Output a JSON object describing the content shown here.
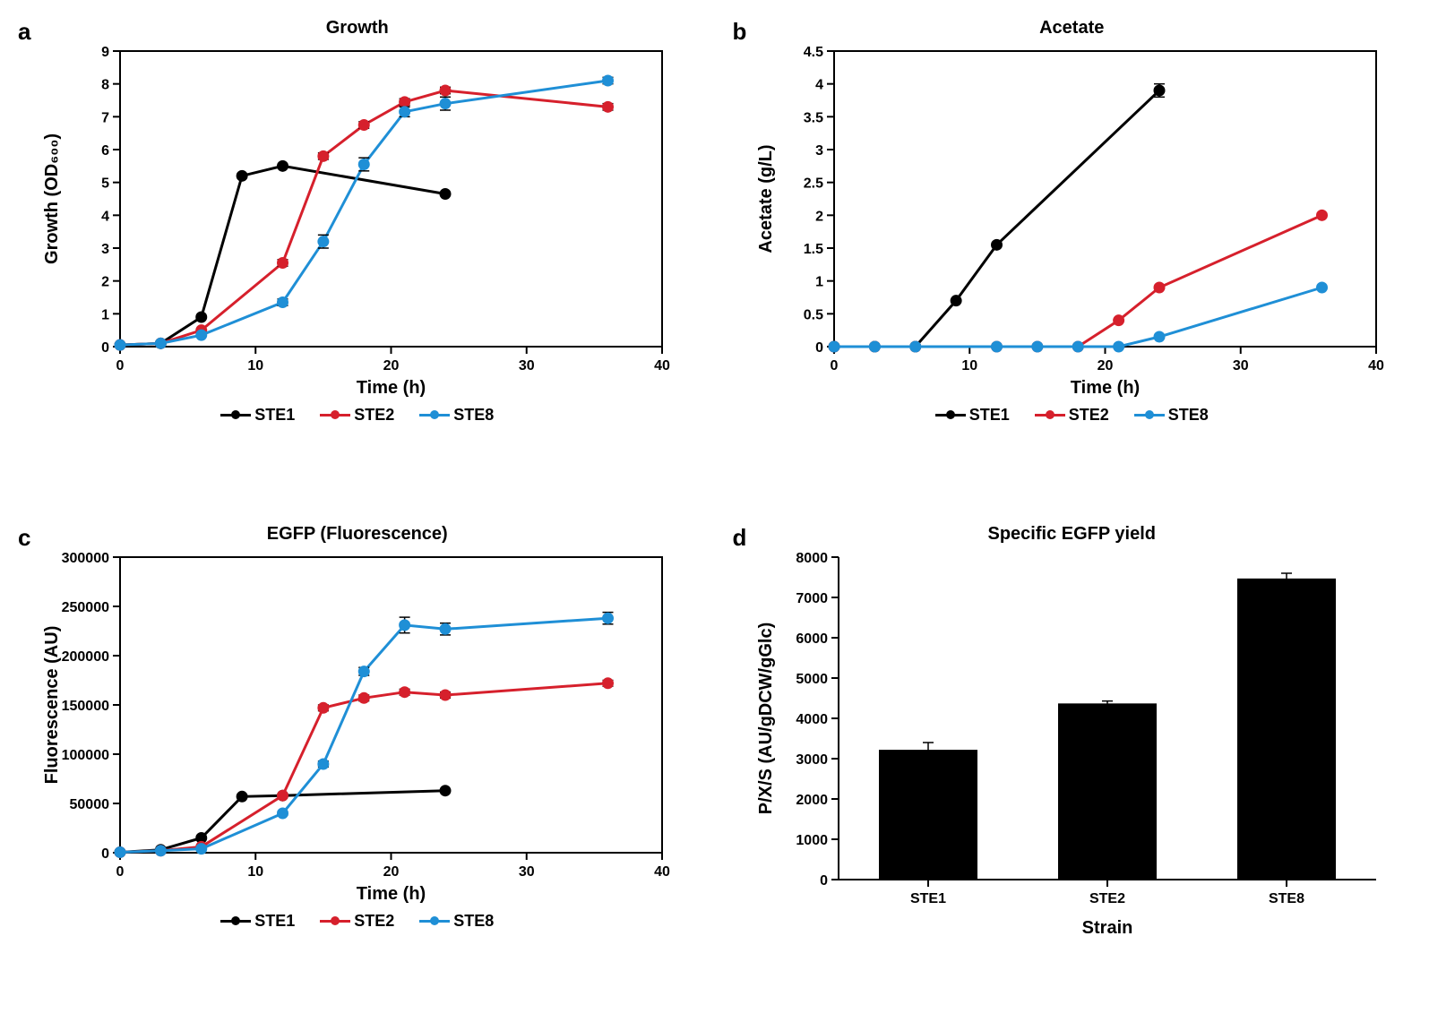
{
  "colors": {
    "ste1": "#000000",
    "ste2": "#d6202c",
    "ste8": "#1f8fd6",
    "axis": "#000000",
    "tick": "#000000",
    "bar_fill": "#000000",
    "background": "#ffffff",
    "text": "#000000"
  },
  "style": {
    "line_width": 3,
    "marker_radius": 6,
    "axis_width": 2,
    "tick_len": 8,
    "font_family": "Arial",
    "title_fontsize_pt": 20,
    "axis_label_fontsize_pt": 20,
    "tick_label_fontsize_pt": 16,
    "panel_label_fontsize_pt": 26,
    "legend_fontsize_pt": 18,
    "errorbar_cap": 6
  },
  "panel_a": {
    "letter": "a",
    "type": "line",
    "title": "Growth",
    "xlabel": "Time (h)",
    "ylabel": "Growth (OD₆₀₀)",
    "xlim": [
      0,
      40
    ],
    "xtick_step": 10,
    "ylim": [
      0,
      9
    ],
    "ytick_step": 1,
    "series": [
      {
        "name": "STE1",
        "color_key": "ste1",
        "x": [
          0,
          3,
          6,
          9,
          12,
          24
        ],
        "y": [
          0.05,
          0.1,
          0.9,
          5.2,
          5.5,
          4.65
        ],
        "err": [
          0,
          0,
          0,
          0,
          0,
          0
        ]
      },
      {
        "name": "STE2",
        "color_key": "ste2",
        "x": [
          0,
          3,
          6,
          12,
          15,
          18,
          21,
          24,
          36
        ],
        "y": [
          0.05,
          0.1,
          0.5,
          2.55,
          5.8,
          6.75,
          7.45,
          7.8,
          7.3
        ],
        "err": [
          0,
          0,
          0,
          0.1,
          0.1,
          0.1,
          0.1,
          0.1,
          0.1
        ]
      },
      {
        "name": "STE8",
        "color_key": "ste8",
        "x": [
          0,
          3,
          6,
          12,
          15,
          18,
          21,
          24,
          36
        ],
        "y": [
          0.05,
          0.1,
          0.35,
          1.35,
          3.2,
          5.55,
          7.15,
          7.4,
          8.1
        ],
        "err": [
          0,
          0,
          0,
          0.1,
          0.2,
          0.2,
          0.15,
          0.2,
          0.1
        ]
      }
    ]
  },
  "panel_b": {
    "letter": "b",
    "type": "line",
    "title": "Acetate",
    "xlabel": "Time (h)",
    "ylabel": "Acetate (g/L)",
    "xlim": [
      0,
      40
    ],
    "xtick_step": 10,
    "ylim": [
      0,
      4.5
    ],
    "ytick_step": 0.5,
    "series": [
      {
        "name": "STE1",
        "color_key": "ste1",
        "x": [
          0,
          3,
          6,
          9,
          12,
          24
        ],
        "y": [
          0,
          0,
          0,
          0.7,
          1.55,
          3.9
        ],
        "err": [
          0,
          0,
          0,
          0,
          0,
          0.1
        ]
      },
      {
        "name": "STE2",
        "color_key": "ste2",
        "x": [
          0,
          3,
          6,
          12,
          15,
          18,
          21,
          24,
          36
        ],
        "y": [
          0,
          0,
          0,
          0,
          0,
          0,
          0.4,
          0.9,
          2.0
        ],
        "err": [
          0,
          0,
          0,
          0,
          0,
          0,
          0,
          0,
          0
        ]
      },
      {
        "name": "STE8",
        "color_key": "ste8",
        "x": [
          0,
          3,
          6,
          12,
          15,
          18,
          21,
          24,
          36
        ],
        "y": [
          0,
          0,
          0,
          0,
          0,
          0,
          0,
          0.15,
          0.9
        ],
        "err": [
          0,
          0,
          0,
          0,
          0,
          0,
          0,
          0,
          0
        ]
      }
    ]
  },
  "panel_c": {
    "letter": "c",
    "type": "line",
    "title": "EGFP (Fluorescence)",
    "xlabel": "Time (h)",
    "ylabel": "Fluorescence (AU)",
    "xlim": [
      0,
      40
    ],
    "xtick_step": 10,
    "ylim": [
      0,
      300000
    ],
    "ytick_step": 50000,
    "series": [
      {
        "name": "STE1",
        "color_key": "ste1",
        "x": [
          0,
          3,
          6,
          9,
          12,
          24
        ],
        "y": [
          500,
          3000,
          15000,
          57000,
          58000,
          63000
        ],
        "err": [
          0,
          0,
          0,
          0,
          0,
          0
        ]
      },
      {
        "name": "STE2",
        "color_key": "ste2",
        "x": [
          0,
          3,
          6,
          12,
          15,
          18,
          21,
          24,
          36
        ],
        "y": [
          500,
          2000,
          6000,
          58000,
          147000,
          157000,
          163000,
          160000,
          172000
        ],
        "err": [
          0,
          0,
          0,
          2000,
          3000,
          3000,
          3000,
          3000,
          3000
        ]
      },
      {
        "name": "STE8",
        "color_key": "ste8",
        "x": [
          0,
          3,
          6,
          12,
          15,
          18,
          21,
          24,
          36
        ],
        "y": [
          500,
          2000,
          4000,
          40000,
          90000,
          184000,
          231000,
          227000,
          238000
        ],
        "err": [
          0,
          0,
          0,
          2000,
          3000,
          4000,
          8000,
          6000,
          6000
        ]
      }
    ]
  },
  "panel_d": {
    "letter": "d",
    "type": "bar",
    "title": "Specific EGFP yield",
    "xlabel": "Strain",
    "ylabel": "P/X/S (AU/gDCW/gGlc)",
    "ylim": [
      0,
      8000
    ],
    "ytick_step": 1000,
    "bar_width": 0.55,
    "categories": [
      "STE1",
      "STE2",
      "STE8"
    ],
    "values": [
      3220,
      4370,
      7470
    ],
    "errors": [
      180,
      60,
      130
    ]
  },
  "legend_labels": [
    "STE1",
    "STE2",
    "STE8"
  ]
}
